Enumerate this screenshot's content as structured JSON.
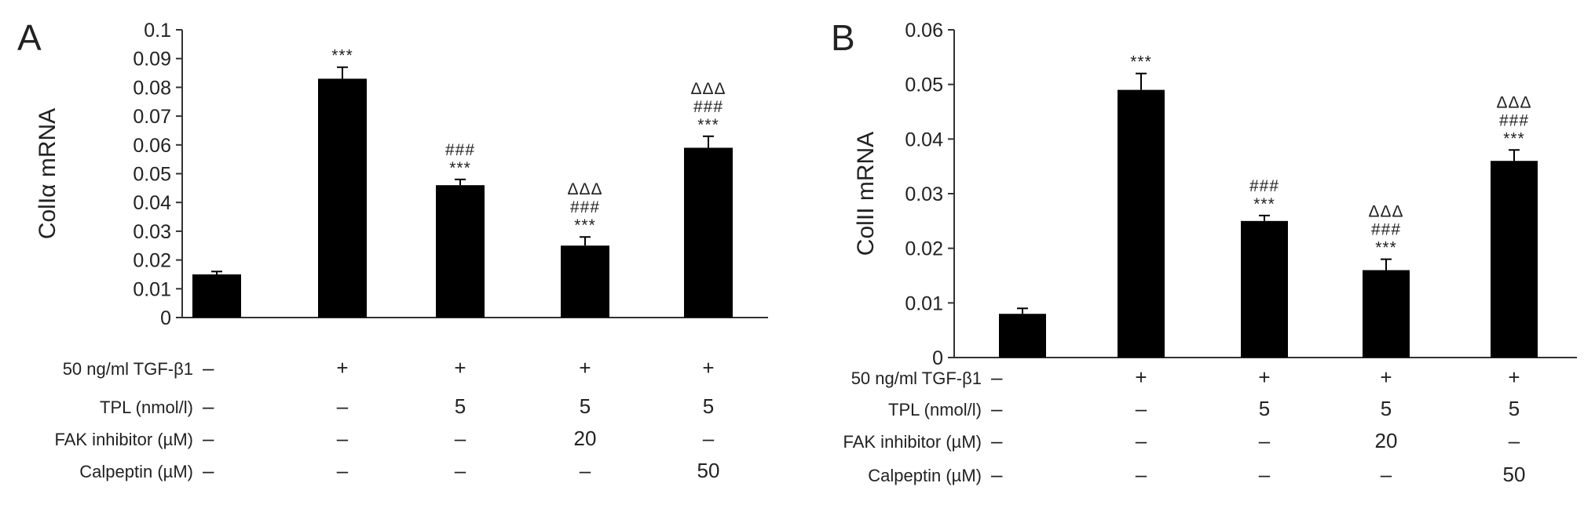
{
  "chart_data": [
    {
      "type": "bar",
      "panel": "A",
      "ylabel": "ColIα mRNA",
      "ylim": [
        0,
        0.1
      ],
      "yticks": [
        "0",
        "0.01",
        "0.02",
        "0.03",
        "0.04",
        "0.05",
        "0.06",
        "0.07",
        "0.08",
        "0.09",
        "0.1"
      ],
      "values": [
        0.015,
        0.083,
        0.046,
        0.025,
        0.059
      ],
      "errors": [
        0.001,
        0.004,
        0.002,
        0.003,
        0.004
      ],
      "annotations": [
        [],
        [
          "***"
        ],
        [
          "###",
          "***"
        ],
        [
          "ΔΔΔ",
          "###",
          "***"
        ],
        [
          "ΔΔΔ",
          "###",
          "***"
        ]
      ],
      "conditions": [
        {
          "label": "50 ng/ml TGF-β1",
          "values": [
            "–",
            "+",
            "+",
            "+",
            "+"
          ]
        },
        {
          "label": "TPL (nmol/l)",
          "values": [
            "–",
            "–",
            "5",
            "5",
            "5"
          ]
        },
        {
          "label": "FAK inhibitor (µM)",
          "values": [
            "–",
            "–",
            "–",
            "20",
            "–"
          ]
        },
        {
          "label": "Calpeptin (µM)",
          "values": [
            "–",
            "–",
            "–",
            "–",
            "50"
          ]
        }
      ]
    },
    {
      "type": "bar",
      "panel": "B",
      "ylabel": "ColII mRNA",
      "ylim": [
        0,
        0.06
      ],
      "yticks": [
        "0",
        "0.01",
        "0.02",
        "0.03",
        "0.04",
        "0.05",
        "0.06"
      ],
      "values": [
        0.008,
        0.049,
        0.025,
        0.016,
        0.036
      ],
      "errors": [
        0.001,
        0.003,
        0.001,
        0.002,
        0.002
      ],
      "annotations": [
        [],
        [
          "***"
        ],
        [
          "###",
          "***"
        ],
        [
          "ΔΔΔ",
          "###",
          "***"
        ],
        [
          "ΔΔΔ",
          "###",
          "***"
        ]
      ],
      "conditions": [
        {
          "label": "50 ng/ml TGF-β1",
          "values": [
            "–",
            "+",
            "+",
            "+",
            "+"
          ]
        },
        {
          "label": "TPL (nmol/l)",
          "values": [
            "–",
            "–",
            "5",
            "5",
            "5"
          ]
        },
        {
          "label": "FAK inhibitor (µM)",
          "values": [
            "–",
            "–",
            "–",
            "20",
            "–"
          ]
        },
        {
          "label": "Calpeptin (µM)",
          "values": [
            "–",
            "–",
            "–",
            "–",
            "50"
          ]
        }
      ]
    }
  ]
}
